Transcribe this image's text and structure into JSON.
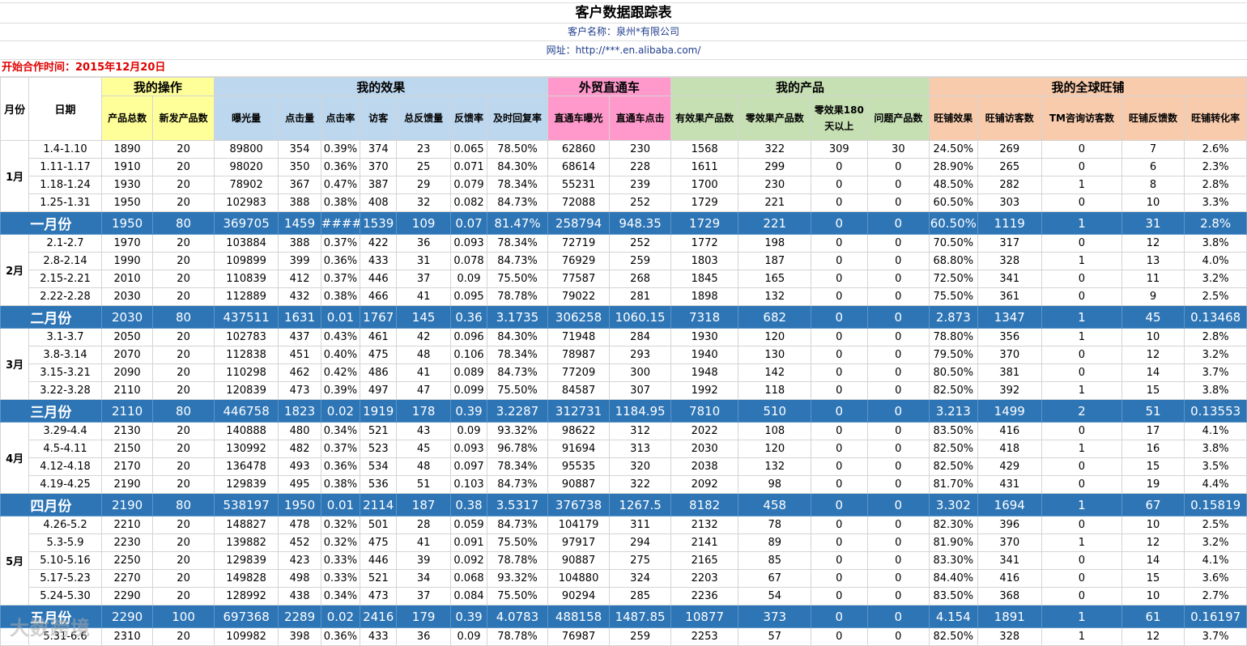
{
  "title": "客户数据跟踪表",
  "client": "客户名称：泉州*有限公司",
  "url": "网址：http://***.en.alibaba.com/",
  "start": "开始合作时间：2015年12月20日",
  "month_col": "月份",
  "date_col": "日期",
  "groups": [
    {
      "label": "我的操作",
      "span": 2,
      "cls": "y"
    },
    {
      "label": "我的效果",
      "span": 7,
      "cls": "b"
    },
    {
      "label": "外贸直通车",
      "span": 2,
      "cls": "p"
    },
    {
      "label": "我的产品",
      "span": 4,
      "cls": "g"
    },
    {
      "label": "我的全球旺铺",
      "span": 5,
      "cls": "o"
    }
  ],
  "headers": [
    {
      "label": "产品总数",
      "cls": "y"
    },
    {
      "label": "新发产品数",
      "cls": "y"
    },
    {
      "label": "曝光量",
      "cls": "b"
    },
    {
      "label": "点击量",
      "cls": "b"
    },
    {
      "label": "点击率",
      "cls": "b"
    },
    {
      "label": "访客",
      "cls": "b"
    },
    {
      "label": "总反馈量",
      "cls": "b"
    },
    {
      "label": "反馈率",
      "cls": "b"
    },
    {
      "label": "及时回复率",
      "cls": "b"
    },
    {
      "label": "直通车曝光",
      "cls": "p"
    },
    {
      "label": "直通车点击",
      "cls": "p"
    },
    {
      "label": "有效果产品数",
      "cls": "g"
    },
    {
      "label": "零效果产品数",
      "cls": "g"
    },
    {
      "label": "零效果180天以上",
      "cls": "g"
    },
    {
      "label": "问题产品数",
      "cls": "g"
    },
    {
      "label": "旺铺效果",
      "cls": "o"
    },
    {
      "label": "旺铺访客数",
      "cls": "o"
    },
    {
      "label": "TM咨询访客数",
      "cls": "o"
    },
    {
      "label": "旺铺反馈数",
      "cls": "o"
    },
    {
      "label": "旺铺转化率",
      "cls": "o"
    }
  ],
  "months": [
    {
      "month": "1月",
      "rows": [
        [
          "1.4-1.10",
          "1890",
          "20",
          "89800",
          "354",
          "0.39%",
          "374",
          "23",
          "0.065",
          "78.50%",
          "62860",
          "230",
          "1568",
          "322",
          "309",
          "30",
          "24.50%",
          "269",
          "0",
          "7",
          "2.6%"
        ],
        [
          "1.11-1.17",
          "1910",
          "20",
          "98020",
          "350",
          "0.36%",
          "370",
          "25",
          "0.071",
          "84.30%",
          "68614",
          "228",
          "1611",
          "299",
          "0",
          "0",
          "28.90%",
          "265",
          "0",
          "6",
          "2.3%"
        ],
        [
          "1.18-1.24",
          "1930",
          "20",
          "78902",
          "367",
          "0.47%",
          "387",
          "29",
          "0.079",
          "78.34%",
          "55231",
          "239",
          "1700",
          "230",
          "0",
          "0",
          "48.50%",
          "282",
          "1",
          "8",
          "2.8%"
        ],
        [
          "1.25-1.31",
          "1950",
          "20",
          "102983",
          "388",
          "0.38%",
          "408",
          "32",
          "0.082",
          "84.73%",
          "72088",
          "252",
          "1729",
          "221",
          "0",
          "0",
          "60.50%",
          "303",
          "0",
          "10",
          "3.3%"
        ]
      ],
      "summary": [
        "一月份",
        "1950",
        "80",
        "369705",
        "1459",
        "####",
        "1539",
        "109",
        "0.07",
        "81.47%",
        "258794",
        "948.35",
        "1729",
        "221",
        "0",
        "0",
        "60.50%",
        "1119",
        "1",
        "31",
        "2.8%"
      ]
    },
    {
      "month": "2月",
      "rows": [
        [
          "2.1-2.7",
          "1970",
          "20",
          "103884",
          "388",
          "0.37%",
          "422",
          "36",
          "0.093",
          "78.34%",
          "72719",
          "252",
          "1772",
          "198",
          "0",
          "0",
          "70.50%",
          "317",
          "0",
          "12",
          "3.8%"
        ],
        [
          "2.8-2.14",
          "1990",
          "20",
          "109899",
          "399",
          "0.36%",
          "433",
          "31",
          "0.078",
          "84.73%",
          "76929",
          "259",
          "1803",
          "187",
          "0",
          "0",
          "68.80%",
          "328",
          "1",
          "13",
          "4.0%"
        ],
        [
          "2.15-2.21",
          "2010",
          "20",
          "110839",
          "412",
          "0.37%",
          "446",
          "37",
          "0.09",
          "75.50%",
          "77587",
          "268",
          "1845",
          "165",
          "0",
          "0",
          "72.50%",
          "341",
          "0",
          "11",
          "3.2%"
        ],
        [
          "2.22-2.28",
          "2030",
          "20",
          "112889",
          "432",
          "0.38%",
          "466",
          "41",
          "0.095",
          "78.78%",
          "79022",
          "281",
          "1898",
          "132",
          "0",
          "0",
          "75.50%",
          "361",
          "0",
          "9",
          "2.5%"
        ]
      ],
      "summary": [
        "二月份",
        "2030",
        "80",
        "437511",
        "1631",
        "0.01",
        "1767",
        "145",
        "0.36",
        "3.1735",
        "306258",
        "1060.15",
        "7318",
        "682",
        "0",
        "0",
        "2.873",
        "1347",
        "1",
        "45",
        "0.13468"
      ]
    },
    {
      "month": "3月",
      "rows": [
        [
          "3.1-3.7",
          "2050",
          "20",
          "102783",
          "437",
          "0.43%",
          "461",
          "42",
          "0.096",
          "84.30%",
          "71948",
          "284",
          "1930",
          "120",
          "0",
          "0",
          "78.80%",
          "356",
          "1",
          "10",
          "2.8%"
        ],
        [
          "3.8-3.14",
          "2070",
          "20",
          "112838",
          "451",
          "0.40%",
          "475",
          "48",
          "0.106",
          "78.34%",
          "78987",
          "293",
          "1940",
          "130",
          "0",
          "0",
          "79.50%",
          "370",
          "0",
          "12",
          "3.2%"
        ],
        [
          "3.15-3.21",
          "2090",
          "20",
          "110298",
          "462",
          "0.42%",
          "486",
          "41",
          "0.089",
          "84.73%",
          "77209",
          "300",
          "1948",
          "142",
          "0",
          "0",
          "80.50%",
          "381",
          "0",
          "14",
          "3.7%"
        ],
        [
          "3.22-3.28",
          "2110",
          "20",
          "120839",
          "473",
          "0.39%",
          "497",
          "47",
          "0.099",
          "75.50%",
          "84587",
          "307",
          "1992",
          "118",
          "0",
          "0",
          "82.50%",
          "392",
          "1",
          "15",
          "3.8%"
        ]
      ],
      "summary": [
        "三月份",
        "2110",
        "80",
        "446758",
        "1823",
        "0.02",
        "1919",
        "178",
        "0.39",
        "3.2287",
        "312731",
        "1184.95",
        "7810",
        "510",
        "0",
        "0",
        "3.213",
        "1499",
        "2",
        "51",
        "0.13553"
      ]
    },
    {
      "month": "4月",
      "rows": [
        [
          "3.29-4.4",
          "2130",
          "20",
          "140888",
          "480",
          "0.34%",
          "521",
          "43",
          "0.09",
          "93.32%",
          "98622",
          "312",
          "2022",
          "108",
          "0",
          "0",
          "83.50%",
          "416",
          "0",
          "17",
          "4.1%"
        ],
        [
          "4.5-4.11",
          "2150",
          "20",
          "130992",
          "482",
          "0.37%",
          "523",
          "45",
          "0.093",
          "96.78%",
          "91694",
          "313",
          "2030",
          "120",
          "0",
          "0",
          "82.50%",
          "418",
          "1",
          "16",
          "3.8%"
        ],
        [
          "4.12-4.18",
          "2170",
          "20",
          "136478",
          "493",
          "0.36%",
          "534",
          "48",
          "0.097",
          "78.34%",
          "95535",
          "320",
          "2038",
          "132",
          "0",
          "0",
          "82.50%",
          "429",
          "0",
          "15",
          "3.5%"
        ],
        [
          "4.19-4.25",
          "2190",
          "20",
          "129839",
          "495",
          "0.38%",
          "536",
          "51",
          "0.103",
          "84.73%",
          "90887",
          "322",
          "2092",
          "98",
          "0",
          "0",
          "81.70%",
          "431",
          "0",
          "19",
          "4.4%"
        ]
      ],
      "summary": [
        "四月份",
        "2190",
        "80",
        "538197",
        "1950",
        "0.01",
        "2114",
        "187",
        "0.38",
        "3.5317",
        "376738",
        "1267.5",
        "8182",
        "458",
        "0",
        "0",
        "3.302",
        "1694",
        "1",
        "67",
        "0.15819"
      ]
    },
    {
      "month": "5月",
      "rows": [
        [
          "4.26-5.2",
          "2210",
          "20",
          "148827",
          "478",
          "0.32%",
          "501",
          "28",
          "0.059",
          "84.73%",
          "104179",
          "311",
          "2132",
          "78",
          "0",
          "0",
          "82.30%",
          "396",
          "0",
          "10",
          "2.5%"
        ],
        [
          "5.3-5.9",
          "2230",
          "20",
          "139882",
          "452",
          "0.32%",
          "475",
          "41",
          "0.091",
          "75.50%",
          "97917",
          "294",
          "2141",
          "89",
          "0",
          "0",
          "81.90%",
          "370",
          "1",
          "12",
          "3.2%"
        ],
        [
          "5.10-5.16",
          "2250",
          "20",
          "129839",
          "423",
          "0.33%",
          "446",
          "39",
          "0.092",
          "78.78%",
          "90887",
          "275",
          "2165",
          "85",
          "0",
          "0",
          "83.30%",
          "341",
          "0",
          "14",
          "4.1%"
        ],
        [
          "5.17-5.23",
          "2270",
          "20",
          "149828",
          "498",
          "0.33%",
          "521",
          "34",
          "0.068",
          "93.32%",
          "104880",
          "324",
          "2203",
          "67",
          "0",
          "0",
          "84.40%",
          "416",
          "0",
          "15",
          "3.6%"
        ],
        [
          "5.24-5.30",
          "2290",
          "20",
          "128992",
          "438",
          "0.34%",
          "473",
          "37",
          "0.084",
          "75.50%",
          "90294",
          "285",
          "2236",
          "54",
          "0",
          "0",
          "83.50%",
          "368",
          "0",
          "10",
          "2.7%"
        ]
      ],
      "summary": [
        "五月份",
        "2290",
        "100",
        "697368",
        "2289",
        "0.02",
        "2416",
        "179",
        "0.39",
        "4.0783",
        "488158",
        "1487.85",
        "10877",
        "373",
        "0",
        "0",
        "4.154",
        "1891",
        "1",
        "61",
        "0.16197"
      ]
    },
    {
      "month": "",
      "rows": [
        [
          "5.31-6.6",
          "2310",
          "20",
          "109982",
          "398",
          "0.36%",
          "433",
          "36",
          "0.09",
          "78.78%",
          "76987",
          "259",
          "2253",
          "57",
          "0",
          "0",
          "82.50%",
          "328",
          "1",
          "12",
          "3.7%"
        ]
      ]
    }
  ],
  "watermark": "大数跨境"
}
